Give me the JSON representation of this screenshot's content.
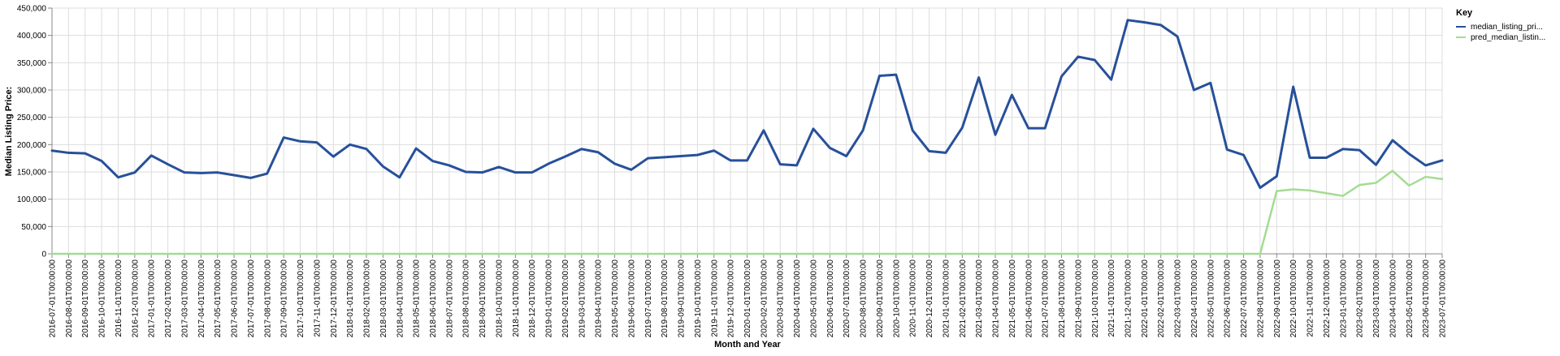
{
  "chart_data": {
    "type": "line",
    "xlabel": "Month and Year",
    "ylabel": "Median Listing Price:",
    "ylim": [
      0,
      450000
    ],
    "yticks": [
      "0",
      "50,000",
      "100,000",
      "150,000",
      "200,000",
      "250,000",
      "300,000",
      "350,000",
      "400,000",
      "450,000"
    ],
    "ytick_values": [
      0,
      50000,
      100000,
      150000,
      200000,
      250000,
      300000,
      350000,
      400000,
      450000
    ],
    "grid": true,
    "legend": {
      "title": "Key",
      "placement": "top-right",
      "entries": [
        "median_listing_pri...",
        "pred_median_listin..."
      ]
    },
    "x": [
      "2016-07-01T00:00:00",
      "2016-08-01T00:00:00",
      "2016-09-01T00:00:00",
      "2016-10-01T00:00:00",
      "2016-11-01T00:00:00",
      "2016-12-01T00:00:00",
      "2017-01-01T00:00:00",
      "2017-02-01T00:00:00",
      "2017-03-01T00:00:00",
      "2017-04-01T00:00:00",
      "2017-05-01T00:00:00",
      "2017-06-01T00:00:00",
      "2017-07-01T00:00:00",
      "2017-08-01T00:00:00",
      "2017-09-01T00:00:00",
      "2017-10-01T00:00:00",
      "2017-11-01T00:00:00",
      "2017-12-01T00:00:00",
      "2018-01-01T00:00:00",
      "2018-02-01T00:00:00",
      "2018-03-01T00:00:00",
      "2018-04-01T00:00:00",
      "2018-05-01T00:00:00",
      "2018-06-01T00:00:00",
      "2018-07-01T00:00:00",
      "2018-08-01T00:00:00",
      "2018-09-01T00:00:00",
      "2018-10-01T00:00:00",
      "2018-11-01T00:00:00",
      "2018-12-01T00:00:00",
      "2019-01-01T00:00:00",
      "2019-02-01T00:00:00",
      "2019-03-01T00:00:00",
      "2019-04-01T00:00:00",
      "2019-05-01T00:00:00",
      "2019-06-01T00:00:00",
      "2019-07-01T00:00:00",
      "2019-08-01T00:00:00",
      "2019-09-01T00:00:00",
      "2019-10-01T00:00:00",
      "2019-11-01T00:00:00",
      "2019-12-01T00:00:00",
      "2020-01-01T00:00:00",
      "2020-02-01T00:00:00",
      "2020-03-01T00:00:00",
      "2020-04-01T00:00:00",
      "2020-05-01T00:00:00",
      "2020-06-01T00:00:00",
      "2020-07-01T00:00:00",
      "2020-08-01T00:00:00",
      "2020-09-01T00:00:00",
      "2020-10-01T00:00:00",
      "2020-11-01T00:00:00",
      "2020-12-01T00:00:00",
      "2021-01-01T00:00:00",
      "2021-02-01T00:00:00",
      "2021-03-01T00:00:00",
      "2021-04-01T00:00:00",
      "2021-05-01T00:00:00",
      "2021-06-01T00:00:00",
      "2021-07-01T00:00:00",
      "2021-08-01T00:00:00",
      "2021-09-01T00:00:00",
      "2021-10-01T00:00:00",
      "2021-11-01T00:00:00",
      "2021-12-01T00:00:00",
      "2022-01-01T00:00:00",
      "2022-02-01T00:00:00",
      "2022-03-01T00:00:00",
      "2022-04-01T00:00:00",
      "2022-05-01T00:00:00",
      "2022-06-01T00:00:00",
      "2022-07-01T00:00:00",
      "2022-08-01T00:00:00",
      "2022-09-01T00:00:00",
      "2022-10-01T00:00:00",
      "2022-11-01T00:00:00",
      "2022-12-01T00:00:00",
      "2023-01-01T00:00:00",
      "2023-02-01T00:00:00",
      "2023-03-01T00:00:00",
      "2023-04-01T00:00:00",
      "2023-05-01T00:00:00",
      "2023-06-01T00:00:00",
      "2023-07-01T00:00:00"
    ],
    "series": [
      {
        "name": "median_listing_pri...",
        "color": "#27509a",
        "values": [
          189000,
          185000,
          184000,
          170000,
          140000,
          149000,
          180000,
          164000,
          149000,
          148000,
          149000,
          144000,
          139000,
          147000,
          213000,
          206000,
          204000,
          178000,
          200000,
          192000,
          160000,
          140000,
          193000,
          170000,
          162000,
          150000,
          149000,
          159000,
          149000,
          149000,
          165000,
          178000,
          192000,
          186000,
          165000,
          154000,
          175000,
          177000,
          179000,
          181000,
          189000,
          171000,
          171000,
          226000,
          164000,
          162000,
          229000,
          194000,
          179000,
          226000,
          326000,
          328000,
          226000,
          188000,
          185000,
          231000,
          323000,
          218000,
          291000,
          230000,
          230000,
          325000,
          361000,
          355000,
          319000,
          428000,
          424000,
          419000,
          398000,
          300000,
          313000,
          191000,
          181000,
          121000,
          142000,
          306000,
          176000,
          176000,
          192000,
          190000,
          163000,
          208000,
          183000,
          162000,
          171000
        ]
      },
      {
        "name": "pred_median_listin...",
        "color": "#a3dc92",
        "values": [
          0,
          0,
          0,
          0,
          0,
          0,
          0,
          0,
          0,
          0,
          0,
          0,
          0,
          0,
          0,
          0,
          0,
          0,
          0,
          0,
          0,
          0,
          0,
          0,
          0,
          0,
          0,
          0,
          0,
          0,
          0,
          0,
          0,
          0,
          0,
          0,
          0,
          0,
          0,
          0,
          0,
          0,
          0,
          0,
          0,
          0,
          0,
          0,
          0,
          0,
          0,
          0,
          0,
          0,
          0,
          0,
          0,
          0,
          0,
          0,
          0,
          0,
          0,
          0,
          0,
          0,
          0,
          0,
          0,
          0,
          0,
          0,
          0,
          0,
          115000,
          118000,
          116000,
          111000,
          106000,
          126000,
          130000,
          152000,
          125000,
          141000,
          137000
        ]
      }
    ]
  }
}
